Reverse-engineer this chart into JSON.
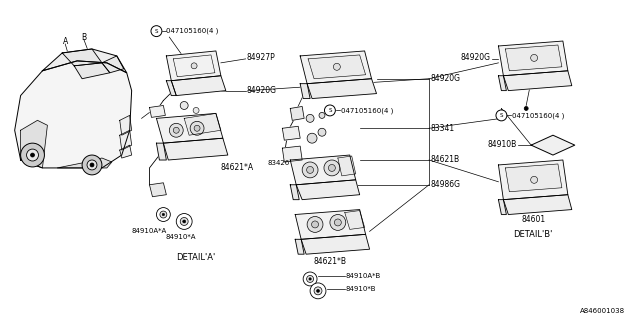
{
  "background_color": "#ffffff",
  "fig_width": 6.4,
  "fig_height": 3.2,
  "dpi": 100,
  "watermark": "A846001038",
  "parts": {
    "detail_a_label": "DETAIL'A'",
    "detail_b_label": "DETAIL'B'",
    "screw_label1": "047105160(4 )",
    "screw_label2": "047105160(4 )",
    "screw_label3": "047105160(4 )",
    "p84927": "84927P",
    "p84920g_1": "84920G",
    "p84621a": "84621*A",
    "p84910aa": "84910A*A",
    "p84910a": "84910*A",
    "p84920g_2": "84920G",
    "p83341": "83341",
    "p83426": "83426",
    "p84621b_label": "84621B",
    "p84986g": "84986G",
    "p84621b2": "84621*B",
    "p84910ab": "84910A*B",
    "p84910b_small": "84910*B",
    "p84920g_3": "84920G",
    "p84910b": "84910B",
    "p84601": "84601",
    "label_a": "A",
    "label_b": "B"
  }
}
